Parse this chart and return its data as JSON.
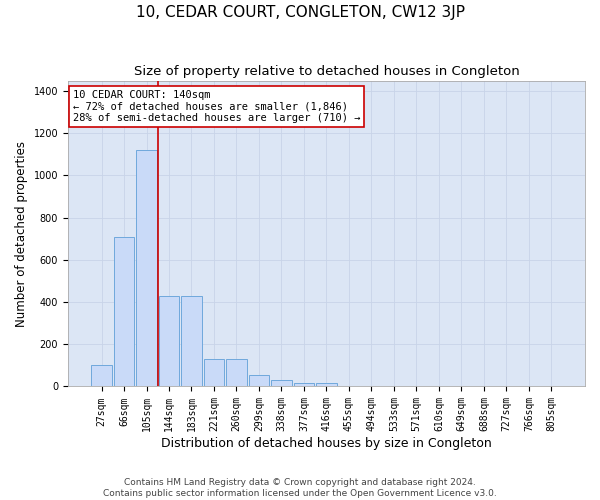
{
  "title": "10, CEDAR COURT, CONGLETON, CW12 3JP",
  "subtitle": "Size of property relative to detached houses in Congleton",
  "xlabel": "Distribution of detached houses by size in Congleton",
  "ylabel": "Number of detached properties",
  "bar_labels": [
    "27sqm",
    "66sqm",
    "105sqm",
    "144sqm",
    "183sqm",
    "221sqm",
    "260sqm",
    "299sqm",
    "338sqm",
    "377sqm",
    "416sqm",
    "455sqm",
    "494sqm",
    "533sqm",
    "571sqm",
    "610sqm",
    "649sqm",
    "688sqm",
    "727sqm",
    "766sqm",
    "805sqm"
  ],
  "bar_values": [
    100,
    710,
    1120,
    430,
    430,
    130,
    130,
    55,
    30,
    15,
    15,
    0,
    0,
    0,
    0,
    0,
    0,
    0,
    0,
    0,
    0
  ],
  "bar_color": "#c9daf8",
  "bar_edgecolor": "#6fa8dc",
  "vline_color": "#cc0000",
  "vline_x_index": 2.5,
  "annotation_text": "10 CEDAR COURT: 140sqm\n← 72% of detached houses are smaller (1,846)\n28% of semi-detached houses are larger (710) →",
  "annotation_box_edgecolor": "#cc0000",
  "ylim": [
    0,
    1450
  ],
  "yticks": [
    0,
    200,
    400,
    600,
    800,
    1000,
    1200,
    1400
  ],
  "grid_color": "#c8d4e8",
  "background_color": "#dce6f5",
  "footer": "Contains HM Land Registry data © Crown copyright and database right 2024.\nContains public sector information licensed under the Open Government Licence v3.0.",
  "title_fontsize": 11,
  "subtitle_fontsize": 9.5,
  "xlabel_fontsize": 9,
  "ylabel_fontsize": 8.5,
  "tick_fontsize": 7,
  "footer_fontsize": 6.5,
  "annotation_fontsize": 7.5
}
